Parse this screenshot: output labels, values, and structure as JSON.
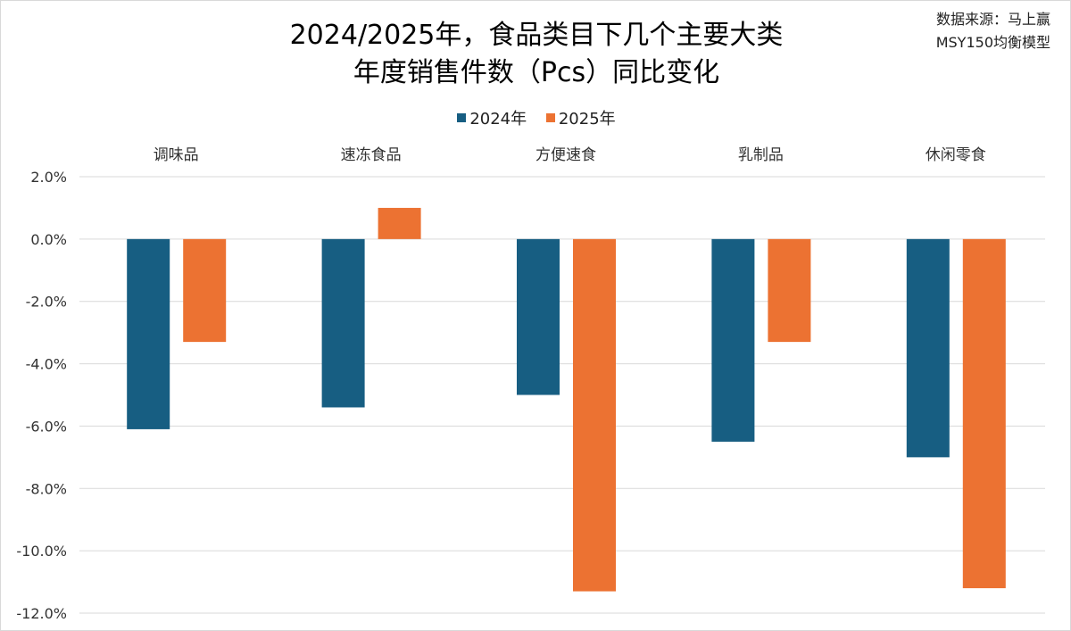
{
  "title_line1": "2024/2025年，食品类目下几个主要大类",
  "title_line2": "年度销售件数（Pcs）同比变化",
  "source_line1": "数据来源：马上赢",
  "source_line2": "MSY150均衡模型",
  "colors": {
    "2024": "#175E82",
    "2025": "#EC7232",
    "grid": "#D9D9D9"
  },
  "chart_data": {
    "type": "bar",
    "title": "2024/2025年，食品类目下几个主要大类 年度销售件数（Pcs）同比变化",
    "categories": [
      "调味品",
      "速冻食品",
      "方便速食",
      "乳制品",
      "休闲零食"
    ],
    "series": [
      {
        "name": "2024年",
        "values": [
          -6.1,
          -5.4,
          -5.0,
          -6.5,
          -7.0
        ]
      },
      {
        "name": "2025年",
        "values": [
          -3.3,
          1.0,
          -11.3,
          -3.3,
          -11.2
        ]
      }
    ],
    "yticks": [
      "2.0%",
      "0.0%",
      "-2.0%",
      "-4.0%",
      "-6.0%",
      "-8.0%",
      "-10.0%",
      "-12.0%"
    ],
    "ylim": [
      -12,
      2
    ],
    "unit": "%",
    "grid": true,
    "legend": "top-center",
    "category_labels_position": "top"
  }
}
